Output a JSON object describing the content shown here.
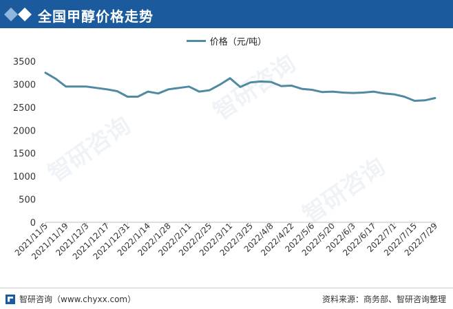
{
  "header": {
    "title": "全国甲醇价格走势"
  },
  "footer": {
    "left": "智研咨询（www.chyxx.com）",
    "right": "资料来源：商务部、智研咨询整理"
  },
  "watermark": {
    "text": "智研咨询"
  },
  "colors": {
    "title_bg": "#1b5a9c",
    "line": "#4f8aa1"
  },
  "chart_data": {
    "type": "line",
    "legend_position": "top-center",
    "grid": false,
    "ylim": [
      0,
      3500
    ],
    "yticks": [
      0,
      500,
      1000,
      1500,
      2000,
      2500,
      3000,
      3500
    ],
    "xtick_labels": [
      "2021/11/5",
      "2021/11/19",
      "2021/12/3",
      "2021/12/17",
      "2021/12/31",
      "2022/1/14",
      "2022/1/28",
      "2022/2/11",
      "2022/2/25",
      "2022/3/11",
      "2022/3/25",
      "2022/4/8",
      "2022/4/22",
      "2022/5/6",
      "2022/5/20",
      "2022/6/3",
      "2022/6/17",
      "2022/7/1",
      "2022/7/15",
      "2022/7/29"
    ],
    "series": [
      {
        "name": "价格（元/吨）",
        "values": [
          3250,
          3120,
          2950,
          2950,
          2950,
          2920,
          2890,
          2850,
          2730,
          2730,
          2840,
          2800,
          2890,
          2920,
          2950,
          2840,
          2870,
          2990,
          3130,
          2940,
          3040,
          3060,
          3050,
          2960,
          2970,
          2900,
          2880,
          2830,
          2840,
          2820,
          2810,
          2820,
          2840,
          2800,
          2780,
          2730,
          2640,
          2650,
          2700
        ]
      }
    ]
  }
}
